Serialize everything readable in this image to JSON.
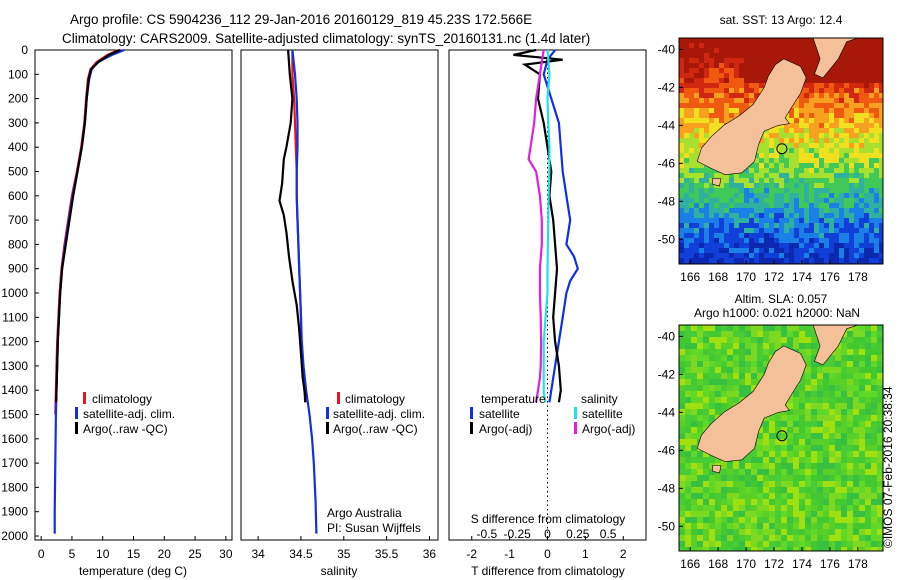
{
  "header": {
    "line1": "Argo profile: CS 5904236_112 29-Jan-2016 20160129_819 45.23S 172.566E",
    "line2": "Climatology: CARS2009. Satellite-adjusted climatology: synTS_20160131.nc (1.4d later)"
  },
  "colors": {
    "climatology": "#e8141e",
    "satellite": "#1030e6",
    "argo": "#000000",
    "cyan": "#22e0e8",
    "magenta": "#e020e0",
    "land": "#f4c09a"
  },
  "chart_data": [
    {
      "id": "temperature",
      "type": "line",
      "xlabel": "temperature (deg C)",
      "xlim": [
        -1,
        31
      ],
      "ylim": [
        2000,
        0
      ],
      "xticks": [
        "0",
        "5",
        "10",
        "15",
        "20",
        "25",
        "30"
      ],
      "xtick_values": [
        0,
        5,
        10,
        15,
        20,
        25,
        30
      ],
      "yticks": [
        "0",
        "100",
        "200",
        "300",
        "400",
        "500",
        "600",
        "700",
        "800",
        "900",
        "1000",
        "1100",
        "1200",
        "1300",
        "1400",
        "1500",
        "1600",
        "1700",
        "1800",
        "1900",
        "2000"
      ],
      "legend": [
        "climatology",
        "satellite-adj. clim.",
        "Argo(..raw -QC)"
      ],
      "series": [
        {
          "name": "climatology",
          "color_key": "climatology",
          "x": [
            12.6,
            10.8,
            9.0,
            8.0,
            7.6,
            7.3,
            7.0,
            6.5,
            5.8,
            5.0,
            4.4,
            3.8,
            3.3,
            3.0,
            2.8,
            2.6,
            2.5,
            2.4,
            2.35,
            2.3
          ],
          "y": [
            0,
            20,
            50,
            80,
            120,
            200,
            300,
            400,
            500,
            600,
            700,
            800,
            900,
            1000,
            1100,
            1200,
            1300,
            1400,
            1450,
            1500
          ]
        },
        {
          "name": "satellite-adj. clim.",
          "color_key": "satellite",
          "x": [
            13.5,
            11.5,
            9.2,
            8.2,
            7.8,
            7.4,
            7.1,
            6.6,
            5.9,
            5.1,
            4.5,
            3.9,
            3.4,
            3.1,
            2.9,
            2.7,
            2.6,
            2.5,
            2.4,
            2.3,
            2.2,
            2.2
          ],
          "y": [
            0,
            20,
            50,
            80,
            120,
            200,
            300,
            400,
            500,
            600,
            700,
            800,
            900,
            1000,
            1100,
            1200,
            1300,
            1400,
            1500,
            1700,
            1900,
            1990
          ]
        },
        {
          "name": "Argo(..raw -QC)",
          "color_key": "argo",
          "x": [
            12.8,
            11.0,
            9.3,
            8.1,
            7.7,
            7.4,
            7.1,
            6.6,
            5.9,
            5.2,
            4.6,
            4.0,
            3.4,
            3.1,
            2.9,
            2.7,
            2.6,
            2.5,
            2.45
          ],
          "y": [
            0,
            20,
            50,
            80,
            120,
            200,
            300,
            400,
            500,
            600,
            700,
            800,
            900,
            1000,
            1100,
            1200,
            1300,
            1400,
            1450
          ]
        }
      ]
    },
    {
      "id": "salinity",
      "type": "line",
      "xlabel": "salinity",
      "xlim": [
        33.8,
        36.1
      ],
      "ylim": [
        2000,
        0
      ],
      "xticks": [
        "34",
        "34.5",
        "35",
        "35.5",
        "36"
      ],
      "xtick_values": [
        34,
        34.5,
        35,
        35.5,
        36
      ],
      "legend": [
        "climatology",
        "satellite-adj. clim.",
        "Argo(..raw -QC)"
      ],
      "series": [
        {
          "name": "climatology",
          "color_key": "climatology",
          "x": [
            34.4,
            34.4,
            34.42,
            34.43,
            34.44,
            34.45,
            34.45,
            34.46,
            34.47,
            34.48,
            34.49,
            34.5,
            34.5,
            34.52,
            34.55
          ],
          "y": [
            0,
            100,
            200,
            300,
            400,
            500,
            600,
            700,
            800,
            900,
            1000,
            1100,
            1200,
            1300,
            1450
          ]
        },
        {
          "name": "satellite-adj. clim.",
          "color_key": "satellite",
          "x": [
            34.4,
            34.43,
            34.45,
            34.46,
            34.46,
            34.45,
            34.45,
            34.46,
            34.47,
            34.48,
            34.49,
            34.5,
            34.51,
            34.53,
            34.56,
            34.6,
            34.63,
            34.65,
            34.67,
            34.68
          ],
          "y": [
            0,
            100,
            200,
            300,
            400,
            500,
            600,
            700,
            800,
            900,
            1000,
            1100,
            1200,
            1300,
            1400,
            1500,
            1600,
            1700,
            1850,
            1990
          ]
        },
        {
          "name": "Argo(..raw -QC)",
          "color_key": "argo",
          "x": [
            34.35,
            34.37,
            34.4,
            34.38,
            34.33,
            34.3,
            34.28,
            34.25,
            34.3,
            34.33,
            34.36,
            34.4,
            34.45,
            34.48,
            34.5,
            34.52,
            34.55,
            34.55
          ],
          "y": [
            0,
            100,
            200,
            300,
            400,
            450,
            550,
            620,
            680,
            750,
            850,
            950,
            1050,
            1150,
            1250,
            1350,
            1420,
            1450
          ]
        }
      ],
      "credit": [
        "Argo Australia",
        "PI: Susan Wijffels"
      ]
    },
    {
      "id": "difference",
      "type": "line",
      "xlabel": "T difference from climatology",
      "xlabel_top": "S difference from climatology",
      "xlim": [
        -2.6,
        2.6
      ],
      "ylim": [
        2000,
        0
      ],
      "xticks": [
        "-2",
        "-1",
        "0",
        "1",
        "2"
      ],
      "xtick_values": [
        -2,
        -1,
        0,
        1,
        2
      ],
      "sticks": [
        "-0.5",
        "-0.25",
        "0",
        "0.25",
        "0.5"
      ],
      "stick_values": [
        -1.6,
        -0.8,
        0,
        0.8,
        1.6
      ],
      "legend_left_title": "temperature",
      "legend_right_title": "salinity",
      "legend": [
        "satellite",
        "Argo(-adj)",
        "satellite",
        "Argo(-adj)"
      ],
      "series": [
        {
          "name": "satellite",
          "color_key": "satellite",
          "x": [
            0.2,
            0.0,
            -0.1,
            0.1,
            0.3,
            0.35,
            0.4,
            0.5,
            0.6,
            0.5,
            0.7,
            0.8,
            0.6,
            0.5,
            0.4,
            0.3,
            0.2,
            0.1,
            0.05
          ],
          "y": [
            0,
            40,
            100,
            200,
            300,
            400,
            500,
            600,
            700,
            800,
            850,
            900,
            950,
            1000,
            1100,
            1200,
            1300,
            1400,
            1450
          ]
        },
        {
          "name": "Argo(-adj)",
          "color_key": "argo",
          "x": [
            -0.3,
            -0.9,
            0.4,
            -0.6,
            -0.2,
            -0.25,
            -0.1,
            0.0,
            0.1,
            0.05,
            0.15,
            0.2,
            0.25,
            0.2,
            0.15,
            0.2,
            0.3,
            0.35,
            0.3
          ],
          "y": [
            0,
            20,
            40,
            60,
            100,
            200,
            300,
            400,
            500,
            600,
            700,
            800,
            900,
            1000,
            1100,
            1200,
            1300,
            1400,
            1450
          ]
        },
        {
          "name": "satellite",
          "color_key": "cyan",
          "x": [
            0.0,
            0.05,
            0.0,
            0.02,
            0.05,
            0.05,
            0.03,
            0.02,
            0.01,
            0.0,
            0.0,
            -0.05,
            -0.1,
            -0.1,
            -0.1,
            -0.1,
            -0.1,
            -0.05
          ],
          "y": [
            0,
            100,
            200,
            300,
            400,
            500,
            600,
            700,
            800,
            900,
            1000,
            1100,
            1200,
            1300,
            1350,
            1380,
            1410,
            1450
          ]
        },
        {
          "name": "Argo(-adj)",
          "color_key": "magenta",
          "x": [
            -0.1,
            -0.2,
            -0.3,
            -0.35,
            -0.45,
            -0.5,
            -0.3,
            -0.2,
            -0.15,
            -0.15,
            -0.2,
            -0.2,
            -0.18,
            -0.17,
            -0.18,
            -0.2,
            -0.25,
            -0.3
          ],
          "y": [
            0,
            100,
            200,
            300,
            400,
            450,
            500,
            600,
            700,
            800,
            900,
            1000,
            1100,
            1200,
            1300,
            1350,
            1400,
            1450
          ]
        }
      ]
    },
    {
      "id": "sst_map",
      "type": "heatmap",
      "title": "sat. SST: 13 Argo: 12.4",
      "xticks": [
        "166",
        "168",
        "170",
        "172",
        "174",
        "176",
        "178"
      ],
      "xtick_values": [
        166,
        168,
        170,
        172,
        174,
        176,
        178
      ],
      "yticks": [
        "-40",
        "-42",
        "-44",
        "-46",
        "-48",
        "-50"
      ],
      "ytick_values": [
        -40,
        -42,
        -44,
        -46,
        -48,
        -50
      ],
      "xlim": [
        165.2,
        179.8
      ],
      "ylim": [
        -51.3,
        -39.4
      ],
      "marker": {
        "lon": 172.566,
        "lat": -45.23
      }
    },
    {
      "id": "sla_map",
      "type": "heatmap",
      "title": "Altim. SLA: 0.057",
      "subtitle": "Argo h1000: 0.021 h2000: NaN",
      "xticks": [
        "166",
        "168",
        "170",
        "172",
        "174",
        "176",
        "178"
      ],
      "xtick_values": [
        166,
        168,
        170,
        172,
        174,
        176,
        178
      ],
      "yticks": [
        "-40",
        "-42",
        "-44",
        "-46",
        "-48",
        "-50"
      ],
      "ytick_values": [
        -40,
        -42,
        -44,
        -46,
        -48,
        -50
      ],
      "xlim": [
        165.2,
        179.8
      ],
      "ylim": [
        -51.3,
        -39.4
      ],
      "marker": {
        "lon": 172.566,
        "lat": -45.23
      }
    }
  ],
  "footer": {
    "stamp": "©IMOS 07-Feb-2016 20:38:34"
  }
}
